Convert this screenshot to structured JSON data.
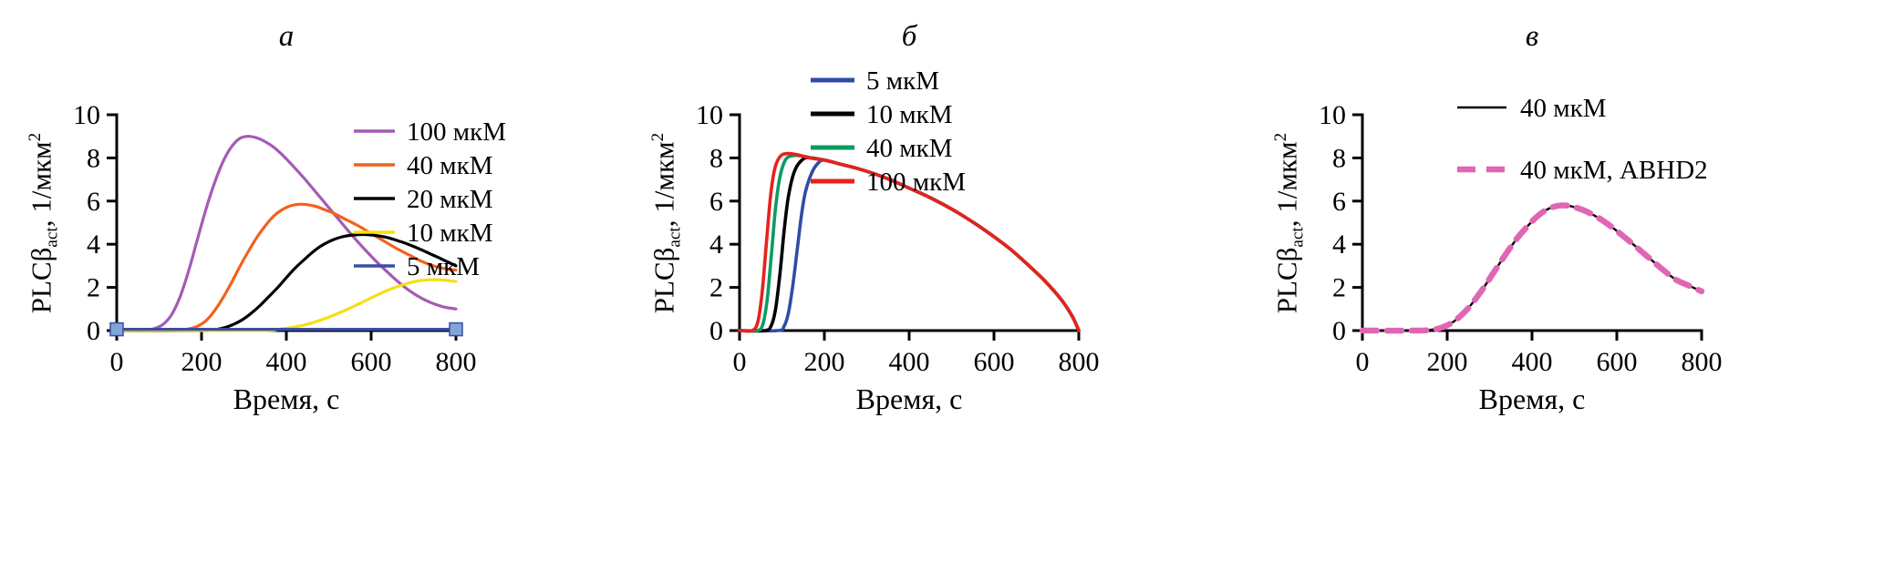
{
  "figure": {
    "background": "#ffffff"
  },
  "ylabel_parts": {
    "main": "PLCβ",
    "sub": "act",
    "rest": ", 1/мкм",
    "sup": "2"
  },
  "chart_data": [
    {
      "type": "line",
      "title": "а",
      "xlabel": "Время, с",
      "ylabel": "PLCβact, 1/мкм2",
      "xlim": [
        0,
        800
      ],
      "ylim": [
        0,
        10
      ],
      "xticks": [
        0,
        200,
        400,
        600,
        800
      ],
      "yticks": [
        0,
        2,
        4,
        6,
        8,
        10
      ],
      "grid": false,
      "legend_position": "top-right",
      "series": [
        {
          "name": "100 мкМ",
          "color": "#a55ab4",
          "width": 3.2,
          "dash": null,
          "x": [
            0,
            60,
            90,
            110,
            130,
            150,
            170,
            190,
            210,
            230,
            250,
            270,
            290,
            310,
            330,
            350,
            370,
            390,
            410,
            440,
            470,
            500,
            530,
            560,
            590,
            620,
            650,
            680,
            710,
            740,
            770,
            800
          ],
          "y": [
            0,
            0,
            0.1,
            0.3,
            0.75,
            1.6,
            2.8,
            4.2,
            5.6,
            6.8,
            7.8,
            8.5,
            8.9,
            9.0,
            8.93,
            8.75,
            8.5,
            8.15,
            7.75,
            7.1,
            6.4,
            5.7,
            5.0,
            4.3,
            3.65,
            3.05,
            2.5,
            2.0,
            1.6,
            1.3,
            1.1,
            1.0
          ]
        },
        {
          "name": "40 мкМ",
          "color": "#f2611c",
          "width": 3.2,
          "dash": null,
          "x": [
            0,
            140,
            170,
            190,
            210,
            230,
            250,
            270,
            290,
            310,
            330,
            350,
            370,
            390,
            410,
            430,
            450,
            470,
            490,
            510,
            540,
            570,
            600,
            630,
            660,
            690,
            720,
            750,
            780,
            800
          ],
          "y": [
            0,
            0,
            0.08,
            0.2,
            0.45,
            0.9,
            1.5,
            2.2,
            2.95,
            3.65,
            4.3,
            4.85,
            5.3,
            5.6,
            5.78,
            5.85,
            5.83,
            5.75,
            5.6,
            5.45,
            5.15,
            4.85,
            4.5,
            4.15,
            3.8,
            3.5,
            3.2,
            2.98,
            2.85,
            2.8
          ]
        },
        {
          "name": "20 мкМ",
          "color": "#000000",
          "width": 3.2,
          "dash": null,
          "x": [
            0,
            210,
            240,
            260,
            280,
            300,
            320,
            340,
            360,
            380,
            400,
            420,
            440,
            460,
            480,
            500,
            520,
            540,
            560,
            580,
            600,
            620,
            640,
            660,
            680,
            700,
            720,
            740,
            760,
            780,
            800
          ],
          "y": [
            0,
            0,
            0.07,
            0.17,
            0.33,
            0.55,
            0.85,
            1.2,
            1.6,
            2.0,
            2.45,
            2.88,
            3.25,
            3.6,
            3.9,
            4.12,
            4.28,
            4.38,
            4.43,
            4.45,
            4.43,
            4.38,
            4.3,
            4.18,
            4.05,
            3.9,
            3.73,
            3.55,
            3.37,
            3.18,
            3.0
          ]
        },
        {
          "name": "10 мкМ",
          "color": "#f5df14",
          "width": 3.2,
          "dash": null,
          "x": [
            0,
            330,
            380,
            420,
            460,
            500,
            540,
            580,
            620,
            650,
            680,
            710,
            740,
            770,
            800
          ],
          "y": [
            0,
            0,
            0.06,
            0.17,
            0.35,
            0.62,
            0.95,
            1.32,
            1.7,
            1.95,
            2.15,
            2.3,
            2.36,
            2.34,
            2.27
          ]
        },
        {
          "name": "5 мкМ",
          "color": "#3a4da6",
          "width": 3.2,
          "dash": null,
          "x": [
            0,
            800
          ],
          "y": [
            0.06,
            0.06
          ]
        }
      ],
      "markers": [
        {
          "x": 0,
          "y": 0.06,
          "shape": "square",
          "color": "#7fa5d9",
          "edge": "#3a4da6"
        },
        {
          "x": 800,
          "y": 0.06,
          "shape": "square",
          "color": "#7fa5d9",
          "edge": "#3a4da6"
        }
      ]
    },
    {
      "type": "line",
      "title": "б",
      "xlabel": "Время, с",
      "ylabel": "PLCβact, 1/мкм2",
      "xlim": [
        0,
        800
      ],
      "ylim": [
        0,
        10
      ],
      "xticks": [
        0,
        200,
        400,
        600,
        800
      ],
      "yticks": [
        0,
        2,
        4,
        6,
        8,
        10
      ],
      "grid": false,
      "legend_position": "top-left",
      "series": [
        {
          "name": "5 мкМ",
          "color": "#2f4da8",
          "width": 3.6,
          "dash": null,
          "x": [
            0,
            90,
            105,
            115,
            125,
            135,
            145,
            155,
            170,
            185,
            200,
            240,
            280,
            320,
            360,
            400,
            440,
            480,
            520,
            560,
            600,
            640,
            680,
            720,
            760,
            785,
            800
          ],
          "y": [
            0,
            0,
            0.2,
            0.8,
            2.0,
            3.6,
            5.2,
            6.4,
            7.3,
            7.75,
            7.9,
            7.7,
            7.5,
            7.25,
            6.95,
            6.6,
            6.25,
            5.85,
            5.4,
            4.9,
            4.35,
            3.75,
            3.05,
            2.3,
            1.4,
            0.65,
            0
          ]
        },
        {
          "name": "10 мкМ",
          "color": "#000000",
          "width": 3.6,
          "dash": null,
          "x": [
            0,
            60,
            75,
            85,
            95,
            105,
            115,
            130,
            150,
            170,
            200,
            240,
            280,
            320,
            360,
            400,
            440,
            480,
            520,
            560,
            600,
            640,
            680,
            720,
            760,
            785,
            800
          ],
          "y": [
            0,
            0,
            0.25,
            1.0,
            2.6,
            4.6,
            6.2,
            7.4,
            7.95,
            8.0,
            7.9,
            7.7,
            7.5,
            7.25,
            6.95,
            6.6,
            6.25,
            5.85,
            5.4,
            4.9,
            4.35,
            3.75,
            3.05,
            2.3,
            1.4,
            0.65,
            0
          ]
        },
        {
          "name": "40 мкМ",
          "color": "#0b9c62",
          "width": 3.6,
          "dash": null,
          "x": [
            0,
            42,
            55,
            65,
            75,
            85,
            95,
            108,
            125,
            150,
            175,
            200,
            240,
            280,
            320,
            360,
            400,
            440,
            480,
            520,
            560,
            600,
            640,
            680,
            720,
            760,
            785,
            800
          ],
          "y": [
            0,
            0,
            0.3,
            1.4,
            3.5,
            5.7,
            7.1,
            7.9,
            8.1,
            8.08,
            7.98,
            7.9,
            7.7,
            7.5,
            7.25,
            6.95,
            6.6,
            6.25,
            5.85,
            5.4,
            4.9,
            4.35,
            3.75,
            3.05,
            2.3,
            1.4,
            0.65,
            0
          ]
        },
        {
          "name": "100 мкМ",
          "color": "#e8211d",
          "width": 3.6,
          "dash": null,
          "x": [
            0,
            30,
            43,
            53,
            63,
            73,
            83,
            95,
            110,
            135,
            165,
            200,
            240,
            280,
            320,
            360,
            400,
            440,
            480,
            520,
            560,
            600,
            640,
            680,
            720,
            760,
            785,
            800
          ],
          "y": [
            0,
            0,
            0.4,
            1.7,
            4.0,
            6.2,
            7.5,
            8.05,
            8.2,
            8.15,
            8.0,
            7.9,
            7.7,
            7.5,
            7.25,
            6.95,
            6.6,
            6.25,
            5.85,
            5.4,
            4.9,
            4.35,
            3.75,
            3.05,
            2.3,
            1.4,
            0.65,
            0
          ]
        }
      ],
      "markers": []
    },
    {
      "type": "line",
      "title": "в",
      "xlabel": "Время, с",
      "ylabel": "PLCβact, 1/мкм2",
      "xlim": [
        0,
        800
      ],
      "ylim": [
        0,
        10
      ],
      "xticks": [
        0,
        200,
        400,
        600,
        800
      ],
      "yticks": [
        0,
        2,
        4,
        6,
        8,
        10
      ],
      "grid": false,
      "legend_position": "top-right",
      "series": [
        {
          "name": "40 мкМ",
          "color": "#000000",
          "width": 2.4,
          "dash": null,
          "x": [
            0,
            130,
            170,
            190,
            210,
            230,
            250,
            270,
            290,
            310,
            330,
            350,
            370,
            390,
            410,
            430,
            450,
            470,
            490,
            510,
            530,
            560,
            590,
            620,
            650,
            680,
            710,
            740,
            770,
            800
          ],
          "y": [
            0,
            0,
            0.06,
            0.16,
            0.35,
            0.65,
            1.05,
            1.55,
            2.1,
            2.7,
            3.3,
            3.88,
            4.4,
            4.85,
            5.25,
            5.55,
            5.73,
            5.8,
            5.77,
            5.66,
            5.5,
            5.18,
            4.77,
            4.3,
            3.8,
            3.3,
            2.8,
            2.35,
            2.08,
            1.82
          ]
        },
        {
          "name": "40 мкМ, ABHD2",
          "color": "#e066b3",
          "width": 6.5,
          "dash": "16 11",
          "x": [
            0,
            130,
            170,
            190,
            210,
            230,
            250,
            270,
            290,
            310,
            330,
            350,
            370,
            390,
            410,
            430,
            450,
            470,
            490,
            510,
            530,
            560,
            590,
            620,
            650,
            680,
            710,
            740,
            770,
            800
          ],
          "y": [
            0,
            0,
            0.06,
            0.16,
            0.35,
            0.65,
            1.05,
            1.55,
            2.1,
            2.7,
            3.3,
            3.88,
            4.4,
            4.85,
            5.25,
            5.55,
            5.73,
            5.8,
            5.77,
            5.66,
            5.5,
            5.18,
            4.77,
            4.3,
            3.8,
            3.3,
            2.8,
            2.35,
            2.08,
            1.82
          ]
        }
      ],
      "markers": []
    }
  ]
}
